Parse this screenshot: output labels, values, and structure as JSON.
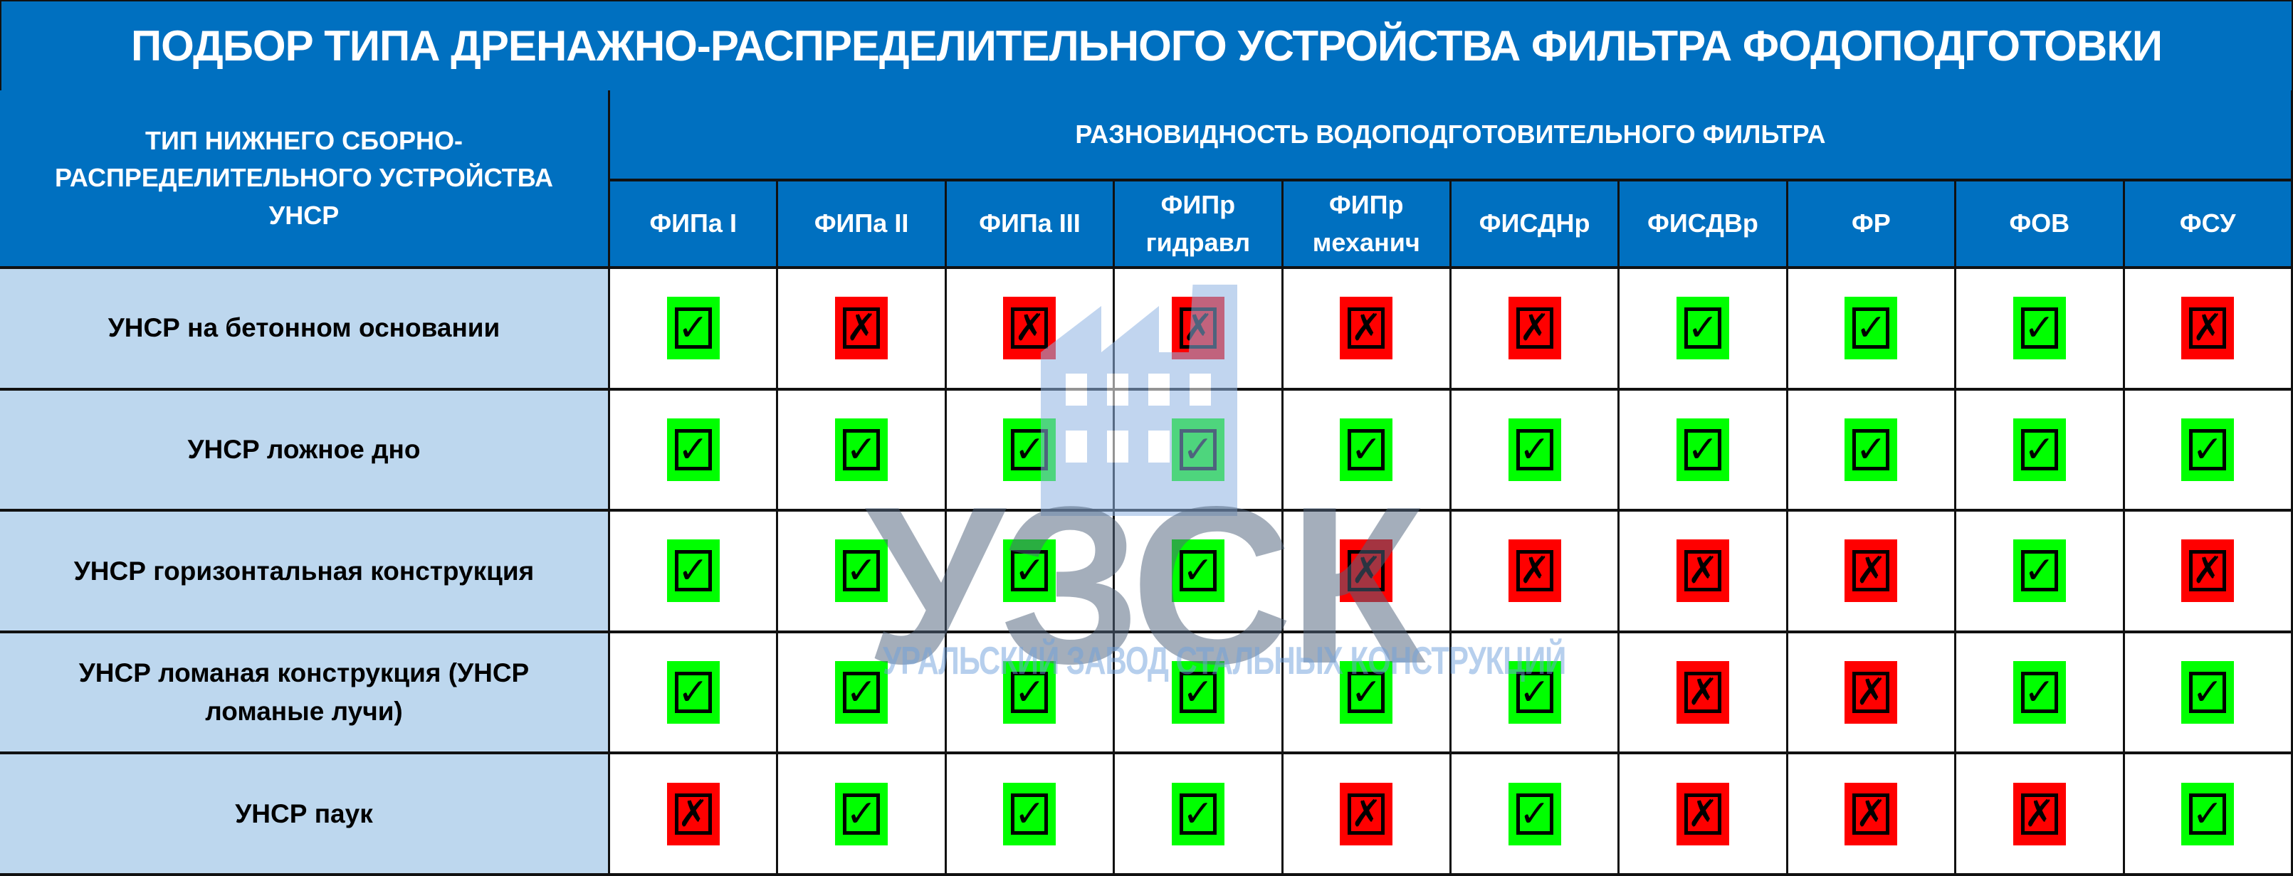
{
  "title": "ПОДБОР ТИПА ДРЕНАЖНО-РАСПРЕДЕЛИТЕЛЬНОГО УСТРОЙСТВА ФИЛЬТРА ФОДОПОДГОТОВКИ",
  "corner_header": "ТИП НИЖНЕГО СБОРНО-РАСПРЕДЕЛИТЕЛЬНОГО УСТРОЙСТВА УНСР",
  "group_header": "РАЗНОВИДНОСТЬ ВОДОПОДГОТОВИТЕЛЬНОГО ФИЛЬТРА",
  "columns": [
    "ФИПа I",
    "ФИПа II",
    "ФИПа III",
    "ФИПр гидравл",
    "ФИПр механич",
    "ФИСДНр",
    "ФИСДВр",
    "ФР",
    "ФОВ",
    "ФСУ"
  ],
  "rows": [
    {
      "label": "УНСР на бетонном основании",
      "values": [
        true,
        false,
        false,
        false,
        false,
        false,
        true,
        true,
        true,
        false
      ]
    },
    {
      "label": "УНСР ложное дно",
      "values": [
        true,
        true,
        true,
        true,
        true,
        true,
        true,
        true,
        true,
        true
      ]
    },
    {
      "label": "УНСР горизонтальная конструкция",
      "values": [
        true,
        true,
        true,
        true,
        false,
        false,
        false,
        false,
        true,
        false
      ]
    },
    {
      "label": "УНСР ломаная конструкция (УНСР ломаные лучи)",
      "values": [
        true,
        true,
        true,
        true,
        true,
        true,
        false,
        false,
        true,
        true
      ]
    },
    {
      "label": "УНСР паук",
      "values": [
        false,
        true,
        true,
        true,
        false,
        true,
        false,
        false,
        false,
        true
      ]
    }
  ],
  "marks": {
    "yes_icon": "checkmark-icon",
    "no_icon": "cross-icon",
    "yes_glyph": "✓",
    "no_glyph": "✗",
    "yes_color": "#00ff00",
    "no_color": "#ff0000"
  },
  "colors": {
    "header_bg": "#0070c0",
    "row_label_bg": "#bdd7ee"
  },
  "watermark": {
    "logo_text": "УЗСК",
    "tagline": "УРАЛЬСКИЙ ЗАВОД СТАЛЬНЫХ КОНСТРУКЦИЙ"
  }
}
